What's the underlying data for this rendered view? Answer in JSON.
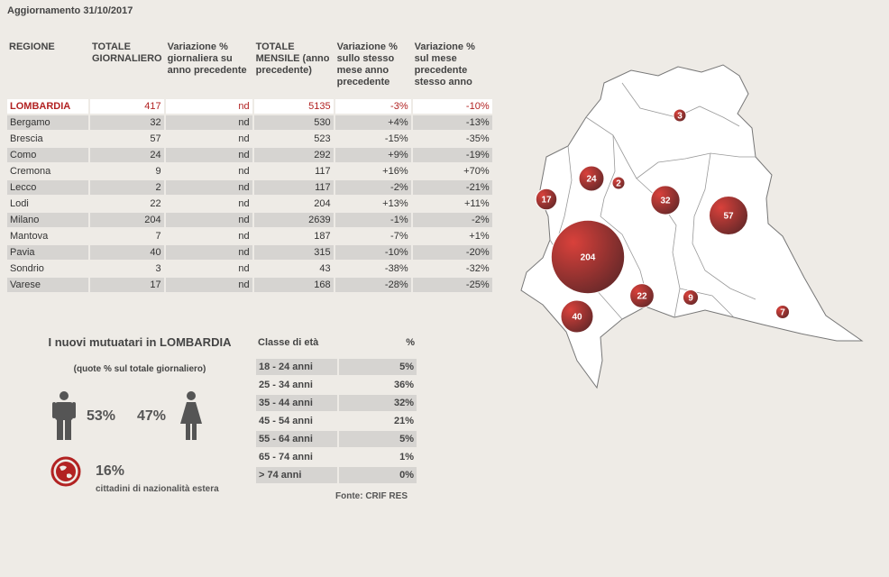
{
  "update": "Aggiornamento 31/10/2017",
  "table": {
    "headers": [
      "REGIONE",
      "TOTALE GIORNALIERO",
      "Variazione % giornaliera su anno precedente",
      "TOTALE MENSILE (anno precedente)",
      "Variazione % sullo stesso mese anno precedente",
      "Variazione % sul mese precedente stesso anno"
    ],
    "region": [
      "LOMBARDIA",
      "417",
      "nd",
      "5135",
      "-3%",
      "-10%"
    ],
    "rows": [
      [
        "Bergamo",
        "32",
        "nd",
        "530",
        "+4%",
        "-13%"
      ],
      [
        "Brescia",
        "57",
        "nd",
        "523",
        "-15%",
        "-35%"
      ],
      [
        "Como",
        "24",
        "nd",
        "292",
        "+9%",
        "-19%"
      ],
      [
        "Cremona",
        "9",
        "nd",
        "117",
        "+16%",
        "+70%"
      ],
      [
        "Lecco",
        "2",
        "nd",
        "117",
        "-2%",
        "-21%"
      ],
      [
        "Lodi",
        "22",
        "nd",
        "204",
        "+13%",
        "+11%"
      ],
      [
        "Milano",
        "204",
        "nd",
        "2639",
        "-1%",
        "-2%"
      ],
      [
        "Mantova",
        "7",
        "nd",
        "187",
        "-7%",
        "+1%"
      ],
      [
        "Pavia",
        "40",
        "nd",
        "315",
        "-10%",
        "-20%"
      ],
      [
        "Sondrio",
        "3",
        "nd",
        "43",
        "-38%",
        "-32%"
      ],
      [
        "Varese",
        "17",
        "nd",
        "168",
        "-28%",
        "-25%"
      ]
    ]
  },
  "mutuatari": {
    "title": "I nuovi mutuatari in LOMBARDIA",
    "subtitle": "(quote % sul totale giornaliero)",
    "male_pct": "53%",
    "female_pct": "47%",
    "foreign_pct": "16%",
    "foreign_label": "cittadini di nazionalità estera",
    "icons": [
      "male-icon",
      "female-icon",
      "globe-icon"
    ]
  },
  "age": {
    "header_class": "Classe di età",
    "header_pct": "%",
    "rows": [
      [
        "18 - 24 anni",
        "5%"
      ],
      [
        "25 - 34 anni",
        "36%"
      ],
      [
        "35 - 44 anni",
        "32%"
      ],
      [
        "45 - 54 anni",
        "21%"
      ],
      [
        "55 - 64 anni",
        "5%"
      ],
      [
        "65 - 74 anni",
        "1%"
      ],
      [
        "> 74 anni",
        "0%"
      ]
    ]
  },
  "source": "Fonte: CRIF RES",
  "map": {
    "bubbles": [
      {
        "province": "Sondrio",
        "value": "3"
      },
      {
        "province": "Como",
        "value": "24"
      },
      {
        "province": "Lecco",
        "value": "2"
      },
      {
        "province": "Varese",
        "value": "17"
      },
      {
        "province": "Bergamo",
        "value": "32"
      },
      {
        "province": "Brescia",
        "value": "57"
      },
      {
        "province": "Milano",
        "value": "204"
      },
      {
        "province": "Lodi",
        "value": "22"
      },
      {
        "province": "Cremona",
        "value": "9"
      },
      {
        "province": "Pavia",
        "value": "40"
      },
      {
        "province": "Mantova",
        "value": "7"
      }
    ],
    "colors": {
      "bubble": "#9b2b2b",
      "bubble_highlight": "#d9413b",
      "fill": "#ffffff",
      "stroke": "#777777"
    }
  }
}
